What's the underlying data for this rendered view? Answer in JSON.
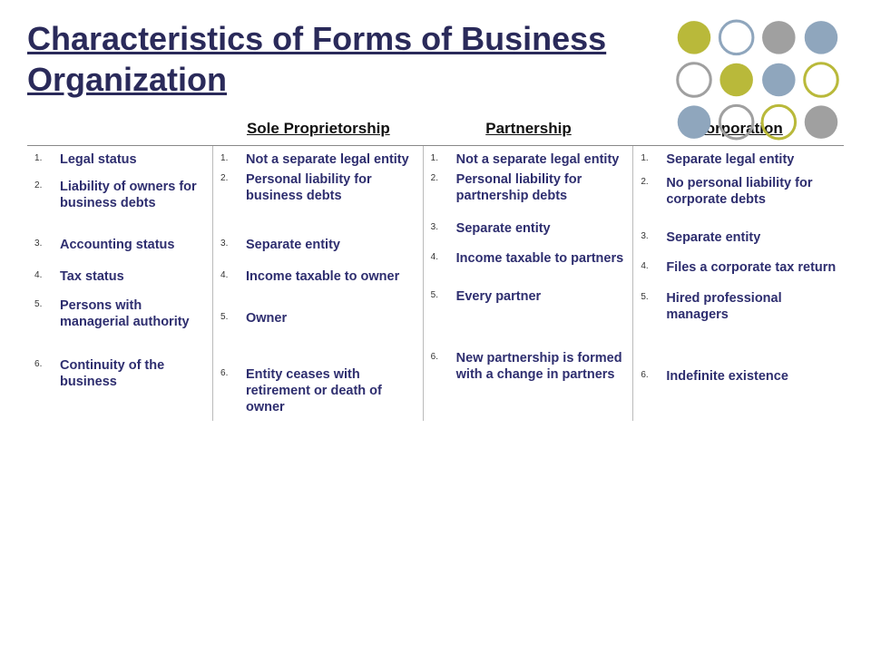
{
  "title": "Characteristics of Forms of Business Organization",
  "ornament": {
    "rows": 3,
    "cols": 4,
    "colors": [
      "#b9b93a",
      "#8fa6bd",
      "#a0a0a0",
      "#8fa6bd",
      "#a0a0a0",
      "#b9b93a",
      "#8fa6bd",
      "#b9b93a",
      "#8fa6bd",
      "#a0a0a0",
      "#b9b93a",
      "#a0a0a0"
    ],
    "fill": [
      true,
      false,
      true,
      true,
      false,
      true,
      true,
      false,
      true,
      false,
      false,
      true
    ],
    "radius": 18,
    "spacing": 46
  },
  "columns": {
    "blank": "",
    "sole": "Sole Proprietorship",
    "partnership": "Partnership",
    "corporation": "Corporation"
  },
  "spacing": {
    "characteristics": [
      0,
      12,
      28,
      16,
      14,
      30
    ],
    "sole": [
      0,
      4,
      36,
      16,
      28,
      44
    ],
    "partnership": [
      0,
      4,
      18,
      14,
      24,
      50
    ],
    "corporation": [
      0,
      8,
      24,
      14,
      16,
      50
    ]
  },
  "rows": {
    "characteristics": [
      "Legal status",
      "Liability of owners for business debts",
      "Accounting status",
      "Tax status",
      "Persons with managerial authority",
      "Continuity of the business"
    ],
    "sole": [
      "Not a separate legal entity",
      "Personal liability for business debts",
      "Separate entity",
      "Income taxable to owner",
      "Owner",
      "Entity ceases with retirement or death of owner"
    ],
    "partnership": [
      "Not a separate legal entity",
      "Personal liability for partnership debts",
      "Separate entity",
      "Income taxable to partners",
      "Every partner",
      "New partnership is formed with a change in partners"
    ],
    "corporation": [
      "Separate legal entity",
      "No personal liability for corporate debts",
      "Separate entity",
      "Files a corporate tax return",
      "Hired professional managers",
      "Indefinite existence"
    ]
  },
  "css": {
    "title_color": "#2a2a5a",
    "item_color": "#2e2e6f",
    "border_color": "#bbbbbb"
  }
}
